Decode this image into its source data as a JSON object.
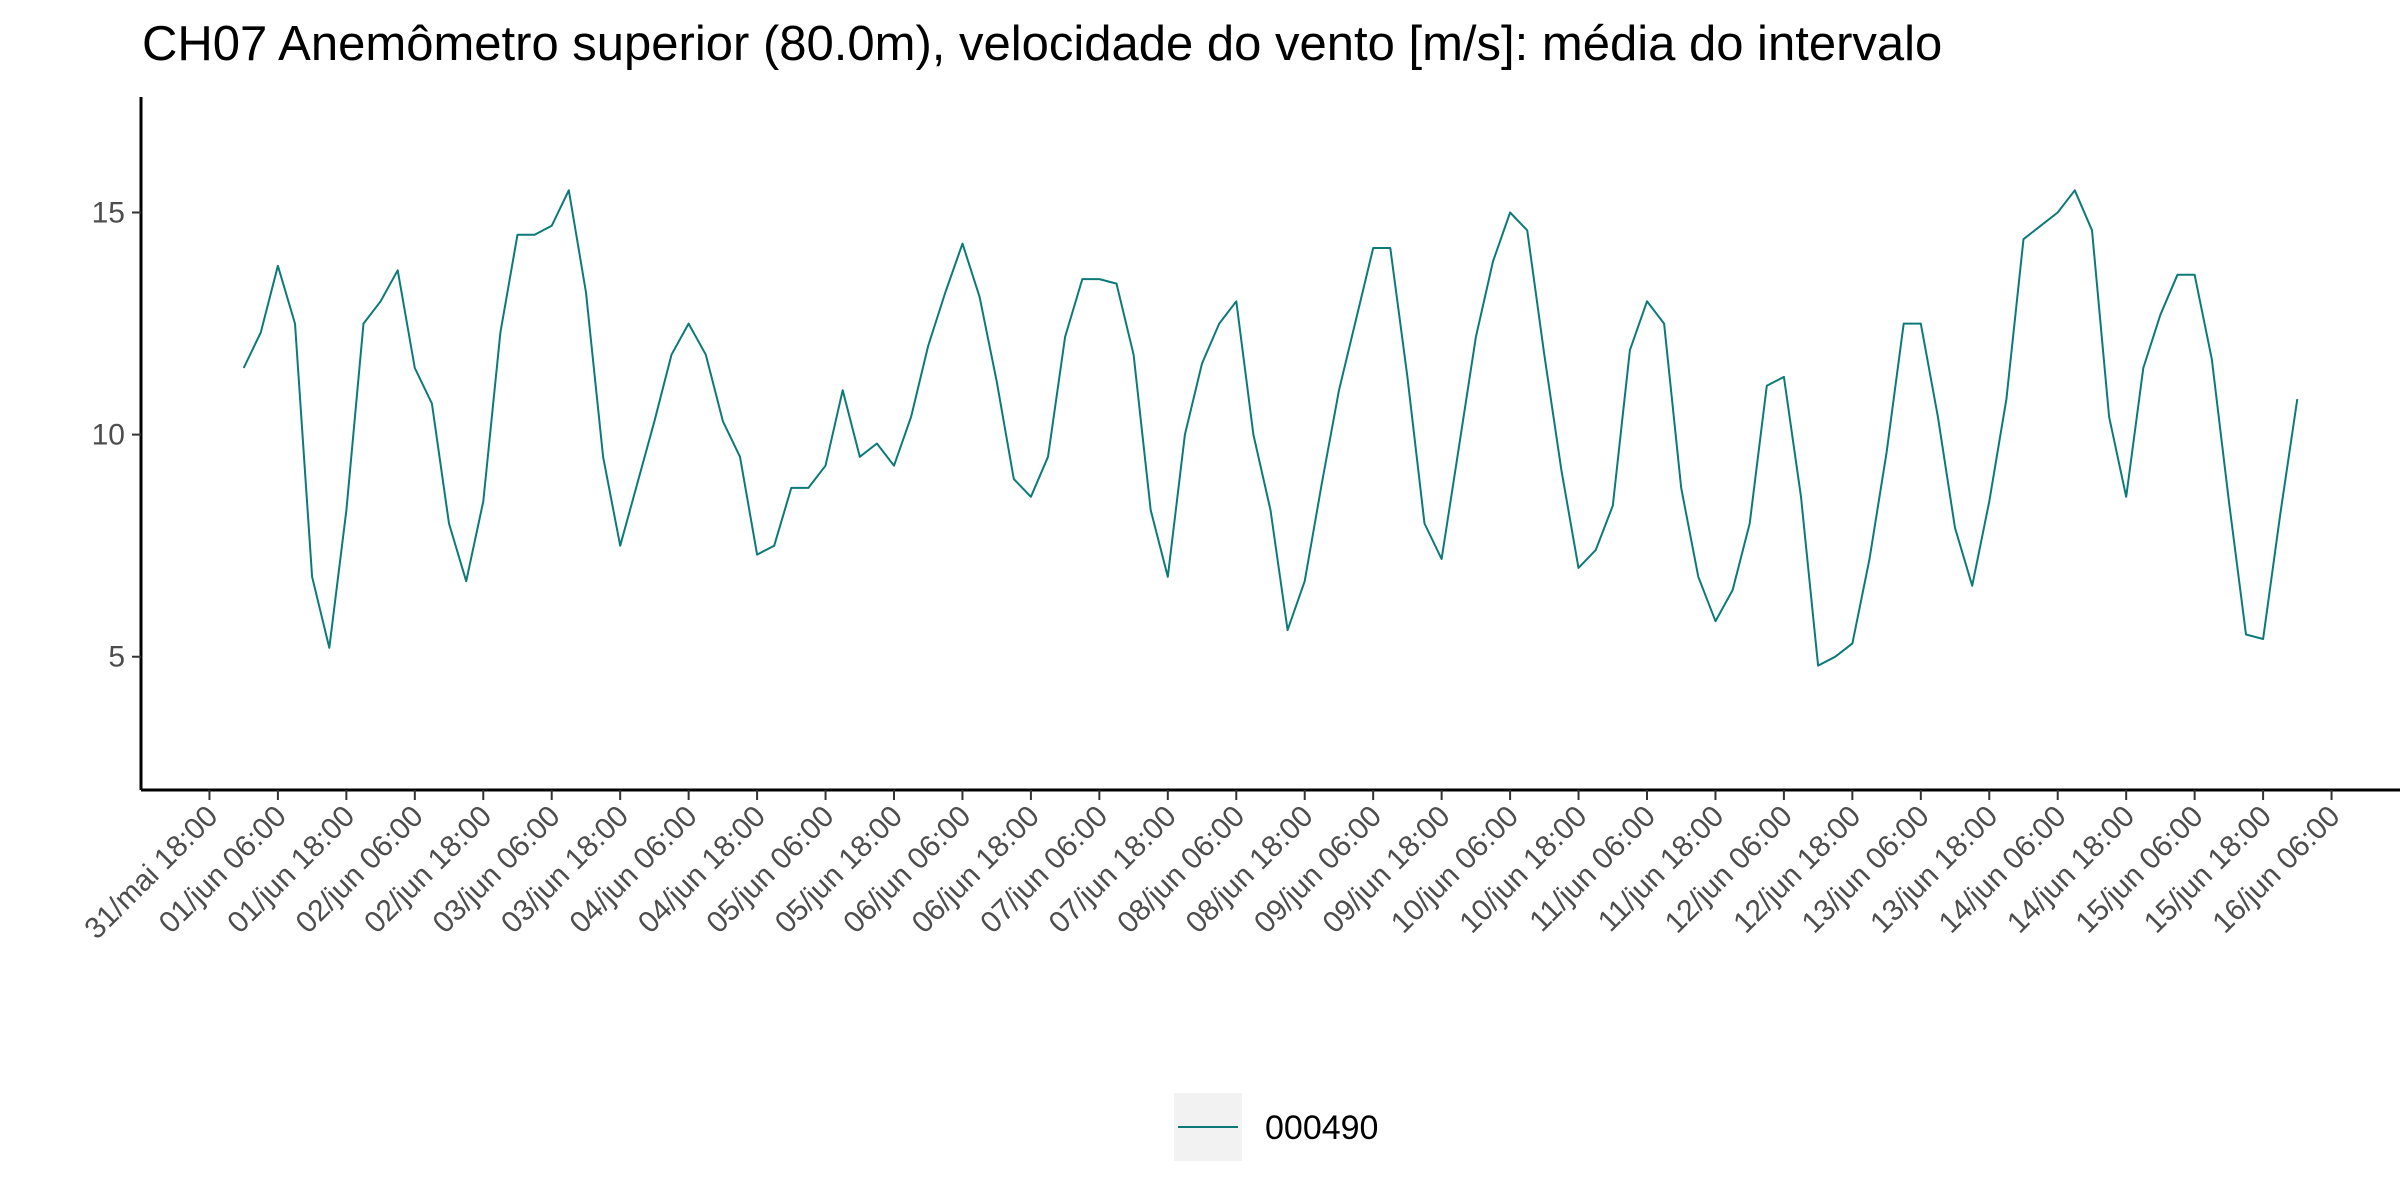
{
  "chart_data": {
    "type": "line",
    "title": "CH07 Anemômetro superior (80.0m), velocidade do vento [m/s]: média do intervalo",
    "x": [
      "01/jun 00:00",
      "01/jun 03:00",
      "01/jun 06:00",
      "01/jun 09:00",
      "01/jun 12:00",
      "01/jun 15:00",
      "01/jun 18:00",
      "01/jun 21:00",
      "02/jun 00:00",
      "02/jun 03:00",
      "02/jun 06:00",
      "02/jun 09:00",
      "02/jun 12:00",
      "02/jun 15:00",
      "02/jun 18:00",
      "02/jun 21:00",
      "03/jun 00:00",
      "03/jun 03:00",
      "03/jun 06:00",
      "03/jun 09:00",
      "03/jun 12:00",
      "03/jun 15:00",
      "03/jun 18:00",
      "03/jun 21:00",
      "04/jun 00:00",
      "04/jun 03:00",
      "04/jun 06:00",
      "04/jun 09:00",
      "04/jun 12:00",
      "04/jun 15:00",
      "04/jun 18:00",
      "04/jun 21:00",
      "05/jun 00:00",
      "05/jun 03:00",
      "05/jun 06:00",
      "05/jun 09:00",
      "05/jun 12:00",
      "05/jun 15:00",
      "05/jun 18:00",
      "05/jun 21:00",
      "06/jun 00:00",
      "06/jun 03:00",
      "06/jun 06:00",
      "06/jun 09:00",
      "06/jun 12:00",
      "06/jun 15:00",
      "06/jun 18:00",
      "06/jun 21:00",
      "07/jun 00:00",
      "07/jun 03:00",
      "07/jun 06:00",
      "07/jun 09:00",
      "07/jun 12:00",
      "07/jun 15:00",
      "07/jun 18:00",
      "07/jun 21:00",
      "08/jun 00:00",
      "08/jun 03:00",
      "08/jun 06:00",
      "08/jun 09:00",
      "08/jun 12:00",
      "08/jun 15:00",
      "08/jun 18:00",
      "08/jun 21:00",
      "09/jun 00:00",
      "09/jun 03:00",
      "09/jun 06:00",
      "09/jun 09:00",
      "09/jun 12:00",
      "09/jun 15:00",
      "09/jun 18:00",
      "09/jun 21:00",
      "10/jun 00:00",
      "10/jun 03:00",
      "10/jun 06:00",
      "10/jun 09:00",
      "10/jun 12:00",
      "10/jun 15:00",
      "10/jun 18:00",
      "10/jun 21:00",
      "11/jun 00:00",
      "11/jun 03:00",
      "11/jun 06:00",
      "11/jun 09:00",
      "11/jun 12:00",
      "11/jun 15:00",
      "11/jun 18:00",
      "11/jun 21:00",
      "12/jun 00:00",
      "12/jun 03:00",
      "12/jun 06:00",
      "12/jun 09:00",
      "12/jun 12:00",
      "12/jun 15:00",
      "12/jun 18:00",
      "12/jun 21:00",
      "13/jun 00:00",
      "13/jun 03:00",
      "13/jun 06:00",
      "13/jun 09:00",
      "13/jun 12:00",
      "13/jun 15:00",
      "13/jun 18:00",
      "13/jun 21:00",
      "14/jun 00:00",
      "14/jun 03:00",
      "14/jun 06:00",
      "14/jun 09:00",
      "14/jun 12:00",
      "14/jun 15:00",
      "14/jun 18:00",
      "14/jun 21:00",
      "15/jun 00:00",
      "15/jun 03:00",
      "15/jun 06:00",
      "15/jun 09:00",
      "15/jun 12:00",
      "15/jun 15:00",
      "15/jun 18:00",
      "15/jun 21:00",
      "16/jun 00:00"
    ],
    "series": [
      {
        "name": "000490",
        "color": "#0b7a78",
        "values": [
          11.5,
          12.3,
          13.8,
          12.5,
          6.8,
          5.2,
          8.3,
          12.5,
          13.0,
          13.7,
          11.5,
          10.7,
          8.0,
          6.7,
          8.5,
          12.3,
          14.5,
          14.5,
          14.7,
          15.5,
          13.2,
          9.5,
          7.5,
          8.9,
          10.3,
          11.8,
          12.5,
          11.8,
          10.3,
          9.5,
          7.3,
          7.5,
          8.8,
          8.8,
          9.3,
          11.0,
          9.5,
          9.8,
          9.3,
          10.4,
          12.0,
          13.2,
          14.3,
          13.1,
          11.2,
          9.0,
          8.6,
          9.5,
          12.2,
          13.5,
          13.5,
          13.4,
          11.8,
          8.3,
          6.8,
          10.0,
          11.6,
          12.5,
          13.0,
          10.0,
          8.3,
          5.6,
          6.7,
          8.9,
          11.0,
          12.6,
          14.2,
          14.2,
          11.3,
          8.0,
          7.2,
          9.7,
          12.2,
          13.9,
          15.0,
          14.6,
          11.8,
          9.2,
          7.0,
          7.4,
          8.4,
          11.9,
          13.0,
          12.5,
          8.8,
          6.8,
          5.8,
          6.5,
          8.0,
          11.1,
          11.3,
          8.6,
          4.8,
          5.0,
          5.3,
          7.2,
          9.6,
          12.5,
          12.5,
          10.4,
          7.9,
          6.6,
          8.5,
          10.8,
          14.4,
          14.7,
          15.0,
          15.5,
          14.6,
          10.4,
          8.6,
          11.5,
          12.7,
          13.6,
          13.6,
          11.7,
          8.5,
          5.5,
          5.4,
          8.2,
          10.8
        ]
      }
    ],
    "xlim": [
      "31/mai 06:00",
      "16/jun 18:00"
    ],
    "xticks": [
      "31/mai 18:00",
      "01/jun 06:00",
      "01/jun 18:00",
      "02/jun 06:00",
      "02/jun 18:00",
      "03/jun 06:00",
      "03/jun 18:00",
      "04/jun 06:00",
      "04/jun 18:00",
      "05/jun 06:00",
      "05/jun 18:00",
      "06/jun 06:00",
      "06/jun 18:00",
      "07/jun 06:00",
      "07/jun 18:00",
      "08/jun 06:00",
      "08/jun 18:00",
      "09/jun 06:00",
      "09/jun 18:00",
      "10/jun 06:00",
      "10/jun 18:00",
      "11/jun 06:00",
      "11/jun 18:00",
      "12/jun 06:00",
      "12/jun 18:00",
      "13/jun 06:00",
      "13/jun 18:00",
      "14/jun 06:00",
      "14/jun 18:00",
      "15/jun 06:00",
      "15/jun 18:00",
      "16/jun 06:00"
    ],
    "ylim": [
      2.0,
      17.6
    ],
    "yticks": [
      5,
      10,
      15
    ],
    "grid": false,
    "legend": "bottom"
  }
}
